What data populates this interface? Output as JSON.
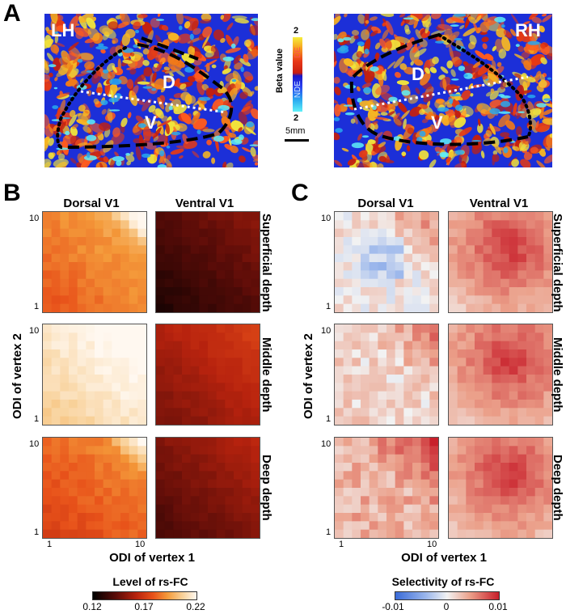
{
  "panels": {
    "a": "A",
    "b": "B",
    "c": "C"
  },
  "panel_a": {
    "left_hemi": "LH",
    "right_hemi": "RH",
    "dorsal": "D",
    "ventral": "V",
    "legend_top": "2",
    "legend_bottom": "2",
    "legend_de": "DE",
    "legend_nde": "NDE",
    "legend_title": "Beta  value",
    "scale_bar": "5mm"
  },
  "panel_b": {
    "col_titles": [
      "Dorsal V1",
      "Ventral V1"
    ],
    "x_axis_label": "ODI of vertex 1",
    "y_axis_label": "ODI of vertex 2",
    "colorbar_title": "Level of rs-FC",
    "colorbar_ticks": [
      "0.12",
      "0.17",
      "0.22"
    ],
    "tick_low": "1",
    "tick_high": "10"
  },
  "panel_c": {
    "col_titles": [
      "Dorsal V1",
      "Ventral V1"
    ],
    "row_titles": [
      "Superficial depth",
      "Middle depth",
      "Deep depth"
    ],
    "x_axis_label": "ODI of vertex 1",
    "y_axis_label": "ODI of vertex 2",
    "colorbar_title": "Selectivity of rs-FC",
    "colorbar_ticks": [
      "-0.01",
      "0",
      "0.01"
    ],
    "tick_low": "1",
    "tick_high": "10"
  },
  "chart_data": [
    {
      "type": "heatmap",
      "title": "Level of rs-FC (panel B)",
      "xlabel": "ODI of vertex 1",
      "ylabel": "ODI of vertex 2",
      "rows": [
        "Superficial depth",
        "Middle depth",
        "Deep depth"
      ],
      "columns": [
        "Dorsal V1",
        "Ventral V1"
      ],
      "color_range": [
        0.12,
        0.22
      ],
      "approx_mean_level": {
        "Dorsal V1": {
          "Superficial depth": 0.18,
          "Middle depth": 0.205,
          "Deep depth": 0.175
        },
        "Ventral V1": {
          "Superficial depth": 0.13,
          "Middle depth": 0.15,
          "Deep depth": 0.14
        }
      }
    },
    {
      "type": "heatmap",
      "title": "Selectivity of rs-FC (panel C)",
      "xlabel": "ODI of vertex 1",
      "ylabel": "ODI of vertex 2",
      "rows": [
        "Superficial depth",
        "Middle depth",
        "Deep depth"
      ],
      "columns": [
        "Dorsal V1",
        "Ventral V1"
      ],
      "color_range": [
        -0.01,
        0.01
      ],
      "approx_mean_selectivity": {
        "Dorsal V1": {
          "Superficial depth": 0.001,
          "Middle depth": 0.002,
          "Deep depth": 0.005
        },
        "Ventral V1": {
          "Superficial depth": 0.006,
          "Middle depth": 0.006,
          "Deep depth": 0.005
        }
      }
    }
  ]
}
